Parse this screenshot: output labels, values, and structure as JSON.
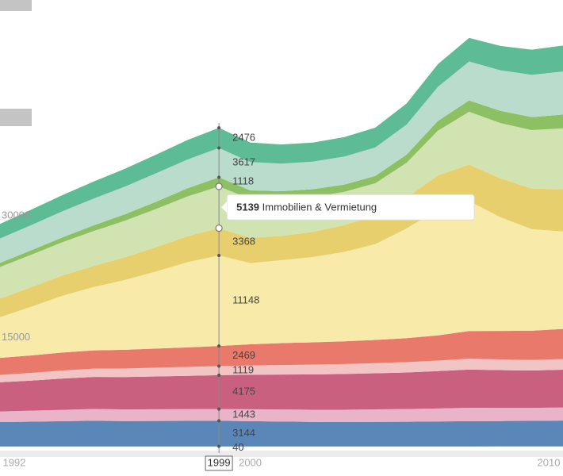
{
  "chart_data": {
    "type": "stacked-area",
    "categories": [
      "1992",
      null,
      null,
      null,
      null,
      null,
      null,
      "1999",
      "2000",
      null,
      null,
      null,
      null,
      null,
      null,
      null,
      null,
      null,
      "2010"
    ],
    "ylim": [
      0,
      55000
    ],
    "yticks": [
      15000,
      30000
    ],
    "hover": {
      "series": 8,
      "index": 7
    },
    "series": [
      {
        "color": "#9fb3cc",
        "values": [
          30,
          32,
          34,
          35,
          36,
          38,
          39,
          40,
          42,
          44,
          45,
          46,
          48,
          50,
          52,
          54,
          55,
          56,
          58
        ]
      },
      {
        "color": "#5b86b8",
        "values": [
          3000,
          3050,
          3100,
          3150,
          3120,
          3130,
          3140,
          3144,
          3100,
          3050,
          3000,
          2980,
          3000,
          3020,
          3050,
          3080,
          3100,
          3120,
          3150
        ]
      },
      {
        "color": "#e9b3c8",
        "values": [
          1300,
          1350,
          1400,
          1450,
          1420,
          1430,
          1440,
          1443,
          1460,
          1480,
          1500,
          1520,
          1540,
          1560,
          1600,
          1650,
          1620,
          1600,
          1620
        ]
      },
      {
        "color": "#c9607f",
        "values": [
          3600,
          3700,
          3850,
          3950,
          4000,
          4050,
          4100,
          4175,
          4250,
          4300,
          4350,
          4400,
          4450,
          4500,
          4600,
          4700,
          4650,
          4600,
          4650
        ]
      },
      {
        "color": "#f3c4c4",
        "values": [
          900,
          950,
          1000,
          1020,
          1050,
          1080,
          1100,
          1119,
          1150,
          1180,
          1200,
          1220,
          1250,
          1280,
          1300,
          1350,
          1320,
          1300,
          1320
        ]
      },
      {
        "color": "#e8796b",
        "values": [
          2100,
          2150,
          2200,
          2250,
          2300,
          2350,
          2400,
          2469,
          2600,
          2700,
          2750,
          2800,
          2850,
          2950,
          3100,
          3400,
          3500,
          3600,
          3700
        ]
      },
      {
        "color": "#f8eaa9",
        "values": [
          5000,
          6000,
          7000,
          7800,
          8600,
          9500,
          10500,
          11148,
          10000,
          10200,
          10500,
          11000,
          11800,
          13500,
          15500,
          16000,
          14000,
          12500,
          12000
        ]
      },
      {
        "color": "#e8cf6e",
        "values": [
          2300,
          2400,
          2500,
          2600,
          2800,
          3000,
          3200,
          3368,
          3100,
          3000,
          3100,
          3300,
          3500,
          3800,
          4200,
          4500,
          4800,
          5000,
          5200
        ]
      },
      {
        "name": "Immobilien & Vermietung",
        "color": "#d0e3b1",
        "values": [
          3900,
          4000,
          4100,
          4300,
          4500,
          4700,
          4900,
          5139,
          4800,
          4500,
          4300,
          4100,
          4000,
          4300,
          5500,
          6500,
          6800,
          7200,
          7500
        ]
      },
      {
        "color": "#8cc063",
        "values": [
          500,
          550,
          600,
          700,
          800,
          900,
          1000,
          1118,
          1050,
          1000,
          950,
          900,
          900,
          1000,
          1200,
          1400,
          1500,
          1600,
          1700
        ]
      },
      {
        "color": "#b9dccc",
        "values": [
          3000,
          3100,
          3200,
          3300,
          3400,
          3500,
          3550,
          3617,
          3500,
          3400,
          3400,
          3450,
          3500,
          3700,
          4200,
          4800,
          5000,
          5200,
          5300
        ]
      },
      {
        "color": "#5dbb96",
        "values": [
          1800,
          1900,
          2000,
          2100,
          2200,
          2300,
          2400,
          2476,
          2400,
          2350,
          2350,
          2400,
          2450,
          2600,
          2800,
          2900,
          3000,
          3100,
          3200
        ]
      }
    ]
  }
}
